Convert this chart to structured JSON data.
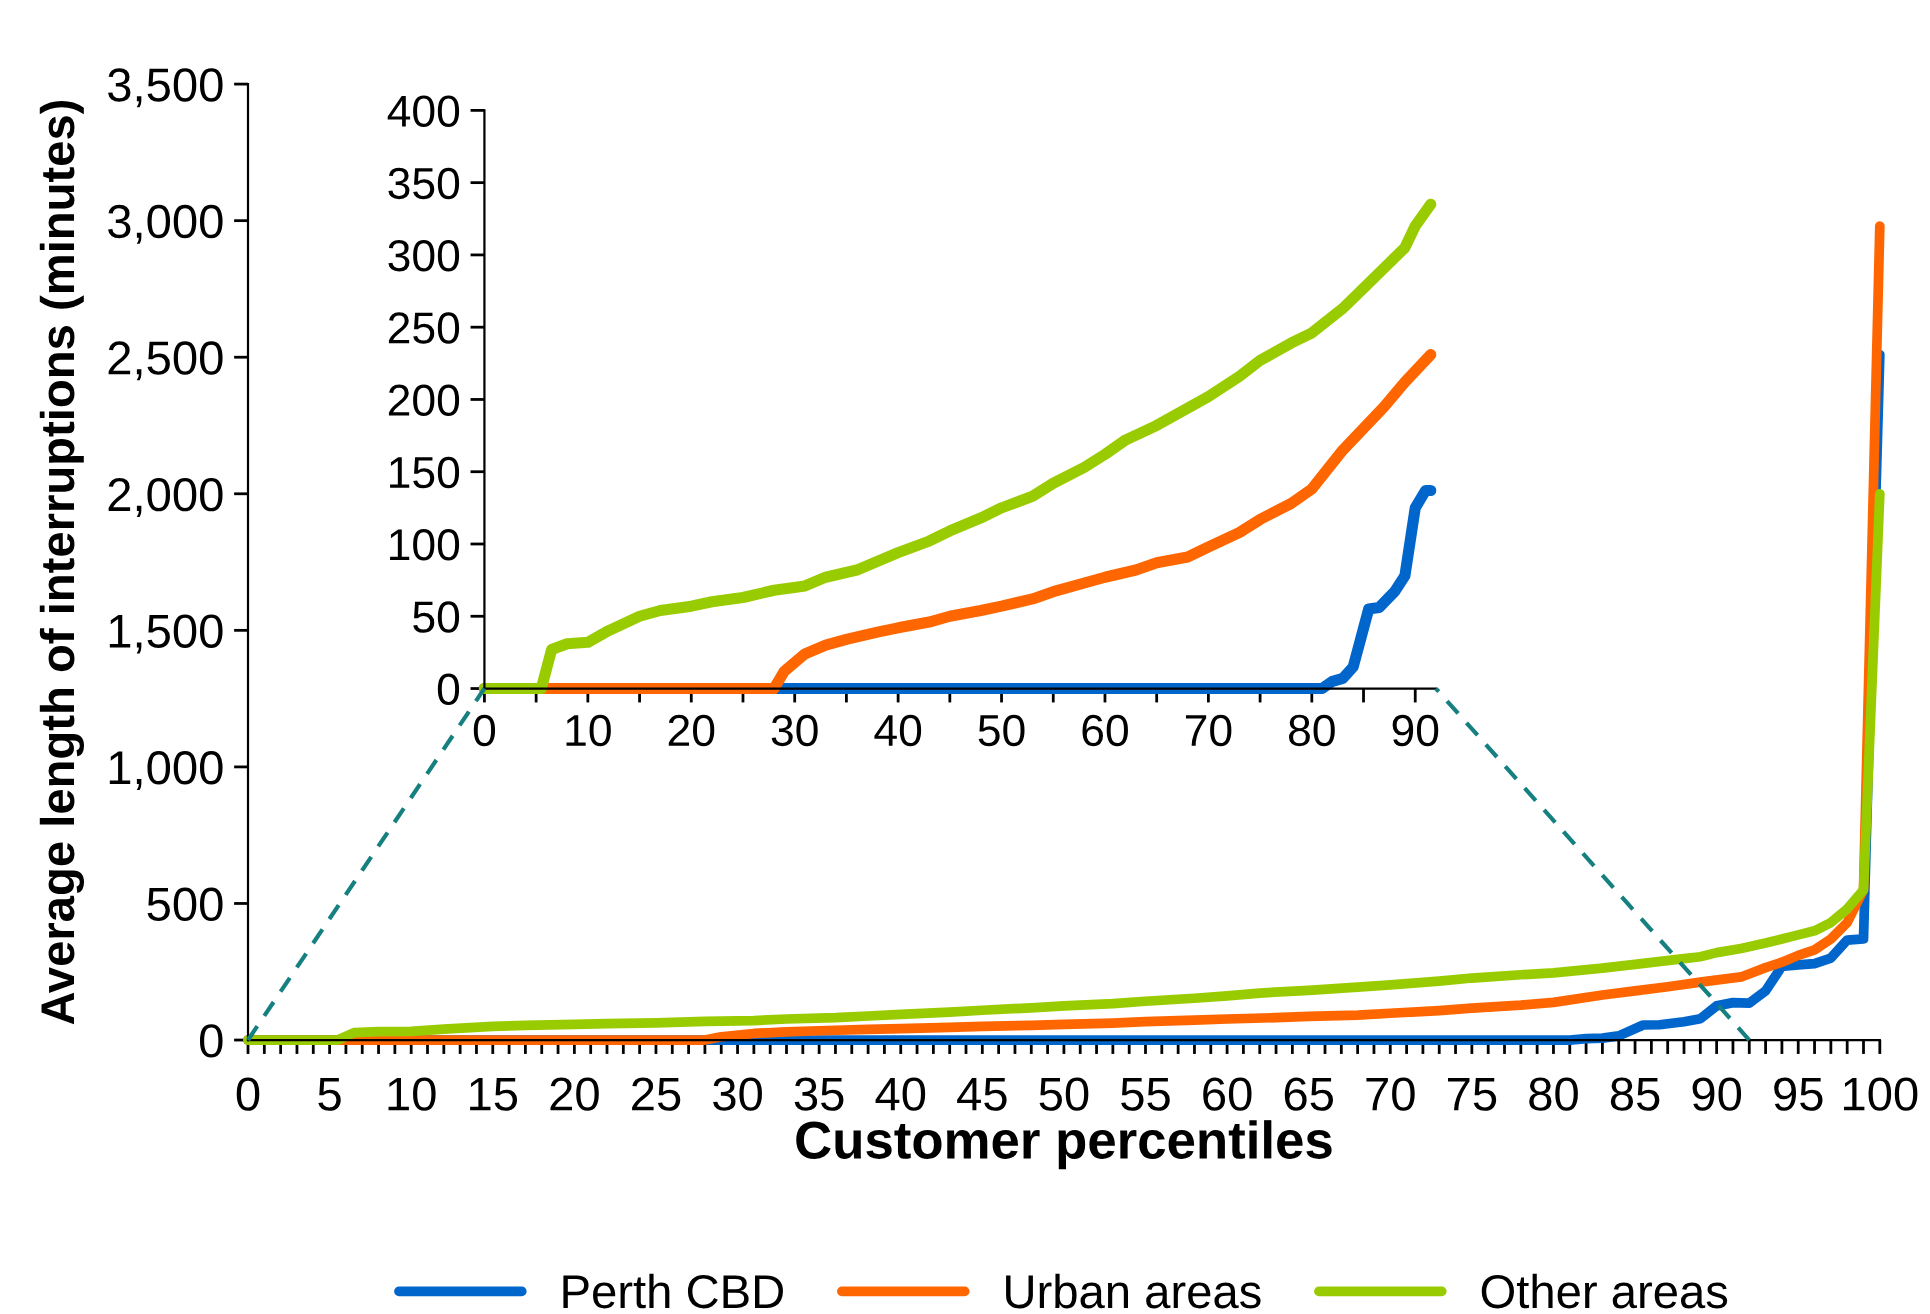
{
  "chart_data": [
    {
      "type": "line",
      "xlabel": "Customer percentiles",
      "ylabel": "Average length of interruptions (minutes)",
      "xlim": [
        0,
        100
      ],
      "ylim": [
        0,
        3500
      ],
      "yticks": [
        0,
        500,
        {
          "value": 1000,
          "label": "1,000"
        },
        {
          "value": 1500,
          "label": "1,500"
        },
        {
          "value": 2000,
          "label": "2,000"
        },
        {
          "value": 2500,
          "label": "2,500"
        },
        {
          "value": 3000,
          "label": "3,000"
        },
        {
          "value": 3500,
          "label": "3,500"
        }
      ],
      "xticks": [
        0,
        {
          "value": 1,
          "label": null
        },
        {
          "value": 2,
          "label": null
        },
        {
          "value": 3,
          "label": null
        },
        {
          "value": 4,
          "label": null
        },
        5,
        {
          "value": 6,
          "label": null
        },
        {
          "value": 7,
          "label": null
        },
        {
          "value": 8,
          "label": null
        },
        {
          "value": 9,
          "label": null
        },
        10,
        {
          "value": 11,
          "label": null
        },
        {
          "value": 12,
          "label": null
        },
        {
          "value": 13,
          "label": null
        },
        {
          "value": 14,
          "label": null
        },
        15,
        {
          "value": 16,
          "label": null
        },
        {
          "value": 17,
          "label": null
        },
        {
          "value": 18,
          "label": null
        },
        {
          "value": 19,
          "label": null
        },
        20,
        {
          "value": 21,
          "label": null
        },
        {
          "value": 22,
          "label": null
        },
        {
          "value": 23,
          "label": null
        },
        {
          "value": 24,
          "label": null
        },
        25,
        {
          "value": 26,
          "label": null
        },
        {
          "value": 27,
          "label": null
        },
        {
          "value": 28,
          "label": null
        },
        {
          "value": 29,
          "label": null
        },
        30,
        {
          "value": 31,
          "label": null
        },
        {
          "value": 32,
          "label": null
        },
        {
          "value": 33,
          "label": null
        },
        {
          "value": 34,
          "label": null
        },
        35,
        {
          "value": 36,
          "label": null
        },
        {
          "value": 37,
          "label": null
        },
        {
          "value": 38,
          "label": null
        },
        {
          "value": 39,
          "label": null
        },
        40,
        {
          "value": 41,
          "label": null
        },
        {
          "value": 42,
          "label": null
        },
        {
          "value": 43,
          "label": null
        },
        {
          "value": 44,
          "label": null
        },
        45,
        {
          "value": 46,
          "label": null
        },
        {
          "value": 47,
          "label": null
        },
        {
          "value": 48,
          "label": null
        },
        {
          "value": 49,
          "label": null
        },
        50,
        {
          "value": 51,
          "label": null
        },
        {
          "value": 52,
          "label": null
        },
        {
          "value": 53,
          "label": null
        },
        {
          "value": 54,
          "label": null
        },
        55,
        {
          "value": 56,
          "label": null
        },
        {
          "value": 57,
          "label": null
        },
        {
          "value": 58,
          "label": null
        },
        {
          "value": 59,
          "label": null
        },
        60,
        {
          "value": 61,
          "label": null
        },
        {
          "value": 62,
          "label": null
        },
        {
          "value": 63,
          "label": null
        },
        {
          "value": 64,
          "label": null
        },
        65,
        {
          "value": 66,
          "label": null
        },
        {
          "value": 67,
          "label": null
        },
        {
          "value": 68,
          "label": null
        },
        {
          "value": 69,
          "label": null
        },
        70,
        {
          "value": 71,
          "label": null
        },
        {
          "value": 72,
          "label": null
        },
        {
          "value": 73,
          "label": null
        },
        {
          "value": 74,
          "label": null
        },
        75,
        {
          "value": 76,
          "label": null
        },
        {
          "value": 77,
          "label": null
        },
        {
          "value": 78,
          "label": null
        },
        {
          "value": 79,
          "label": null
        },
        80,
        {
          "value": 81,
          "label": null
        },
        {
          "value": 82,
          "label": null
        },
        {
          "value": 83,
          "label": null
        },
        {
          "value": 84,
          "label": null
        },
        85,
        {
          "value": 86,
          "label": null
        },
        {
          "value": 87,
          "label": null
        },
        {
          "value": 88,
          "label": null
        },
        {
          "value": 89,
          "label": null
        },
        90,
        {
          "value": 91,
          "label": null
        },
        {
          "value": 92,
          "label": null
        },
        {
          "value": 93,
          "label": null
        },
        {
          "value": 94,
          "label": null
        },
        95,
        {
          "value": 96,
          "label": null
        },
        {
          "value": 97,
          "label": null
        },
        {
          "value": 98,
          "label": null
        },
        {
          "value": 99,
          "label": null
        },
        100
      ],
      "legend": "bottom",
      "grid": false,
      "marker": "none",
      "line_style": "solid",
      "series": [
        {
          "name": "Perth CBD",
          "color": "#0066cc",
          "x": [
            0,
            81,
            82,
            83,
            84,
            85.5,
            86.5,
            88,
            89,
            90,
            91,
            92,
            93,
            94,
            95,
            96,
            97,
            98,
            99,
            100
          ],
          "values": [
            0,
            0,
            5,
            7,
            15,
            55,
            56,
            67,
            78,
            125,
            137,
            135,
            180,
            270,
            275,
            280,
            300,
            366,
            370,
            2510
          ]
        },
        {
          "name": "Urban areas",
          "color": "#ff6600",
          "x": [
            0,
            28,
            29,
            31,
            33,
            35,
            38,
            40,
            43,
            45,
            48,
            50,
            53,
            55,
            58,
            60,
            63,
            65,
            68,
            70,
            73,
            75,
            78,
            80,
            83,
            85,
            87,
            89,
            91.5,
            93,
            94,
            95,
            96,
            97,
            98,
            99,
            100
          ],
          "values": [
            0,
            0,
            12,
            24,
            30,
            34,
            39,
            42,
            46,
            50,
            54,
            57,
            62,
            67,
            73,
            77,
            82,
            87,
            91,
            98,
            108,
            117,
            128,
            138,
            165,
            180,
            195,
            212,
            231,
            265,
            285,
            310,
            330,
            370,
            430,
            550,
            2980
          ]
        },
        {
          "name": "Other areas",
          "color": "#99cc00",
          "x": [
            0,
            5.5,
            6.5,
            8,
            10,
            12,
            15,
            17,
            20,
            22,
            25,
            28,
            31,
            33,
            36,
            38,
            40,
            43,
            45,
            48,
            50,
            53,
            55,
            58,
            60,
            62,
            65,
            68,
            70,
            73,
            75,
            78,
            80,
            83,
            85,
            88,
            89,
            90,
            91.5,
            93,
            94,
            95,
            96,
            97,
            98,
            99,
            100
          ],
          "values": [
            0,
            0,
            27,
            31,
            32,
            40,
            50,
            54,
            57,
            60,
            63,
            68,
            71,
            77,
            82,
            88,
            94,
            102,
            109,
            118,
            125,
            133,
            142,
            153,
            162,
            172,
            182,
            194,
            202,
            216,
            227,
            239,
            246,
            263,
            277,
            298,
            305,
            320,
            335,
            355,
            370,
            385,
            400,
            430,
            480,
            550,
            2000
          ]
        }
      ]
    },
    {
      "type": "line",
      "xlim": [
        0,
        92
      ],
      "ylim": [
        0,
        400
      ],
      "yticks": [
        0,
        50,
        100,
        150,
        200,
        250,
        300,
        350,
        400
      ],
      "xticks": [
        0,
        {
          "value": 5,
          "label": null
        },
        10,
        {
          "value": 15,
          "label": null
        },
        20,
        {
          "value": 25,
          "label": null
        },
        30,
        {
          "value": 35,
          "label": null
        },
        40,
        {
          "value": 45,
          "label": null
        },
        50,
        {
          "value": 55,
          "label": null
        },
        60,
        {
          "value": 65,
          "label": null
        },
        70,
        {
          "value": 75,
          "label": null
        },
        80,
        {
          "value": 85,
          "label": null
        },
        90
      ],
      "legend": false,
      "grid": false,
      "marker": "none",
      "line_style": "solid",
      "series": [
        {
          "color": "#0066cc",
          "x": [
            0,
            81,
            82,
            83,
            84,
            85.5,
            86.5,
            88,
            89,
            90,
            91,
            91.5
          ],
          "values": [
            0,
            0,
            5,
            7,
            15,
            55,
            56,
            67,
            78,
            125,
            137,
            137
          ]
        },
        {
          "color": "#ff6600",
          "x": [
            0,
            28,
            29,
            31,
            33,
            35,
            38,
            40,
            43,
            45,
            48,
            50,
            53,
            55,
            58,
            60,
            63,
            65,
            68,
            70,
            73,
            75,
            78,
            80,
            83,
            85,
            87,
            89,
            91.5
          ],
          "values": [
            0,
            0,
            12,
            24,
            30,
            34,
            39,
            42,
            46,
            50,
            54,
            57,
            62,
            67,
            73,
            77,
            82,
            87,
            91,
            98,
            108,
            117,
            128,
            138,
            165,
            180,
            195,
            212,
            231
          ]
        },
        {
          "color": "#99cc00",
          "x": [
            0,
            5.5,
            6.5,
            8,
            10,
            12,
            15,
            17,
            20,
            22,
            25,
            28,
            31,
            33,
            36,
            38,
            40,
            43,
            45,
            48,
            50,
            53,
            55,
            58,
            60,
            62,
            65,
            68,
            70,
            73,
            75,
            78,
            80,
            83,
            85,
            88,
            89,
            90,
            91.5
          ],
          "values": [
            0,
            0,
            27,
            31,
            32,
            40,
            50,
            54,
            57,
            60,
            63,
            68,
            71,
            77,
            82,
            88,
            94,
            102,
            109,
            118,
            125,
            133,
            142,
            153,
            162,
            172,
            182,
            194,
            202,
            216,
            227,
            239,
            246,
            263,
            277,
            298,
            305,
            320,
            335
          ]
        }
      ]
    }
  ]
}
